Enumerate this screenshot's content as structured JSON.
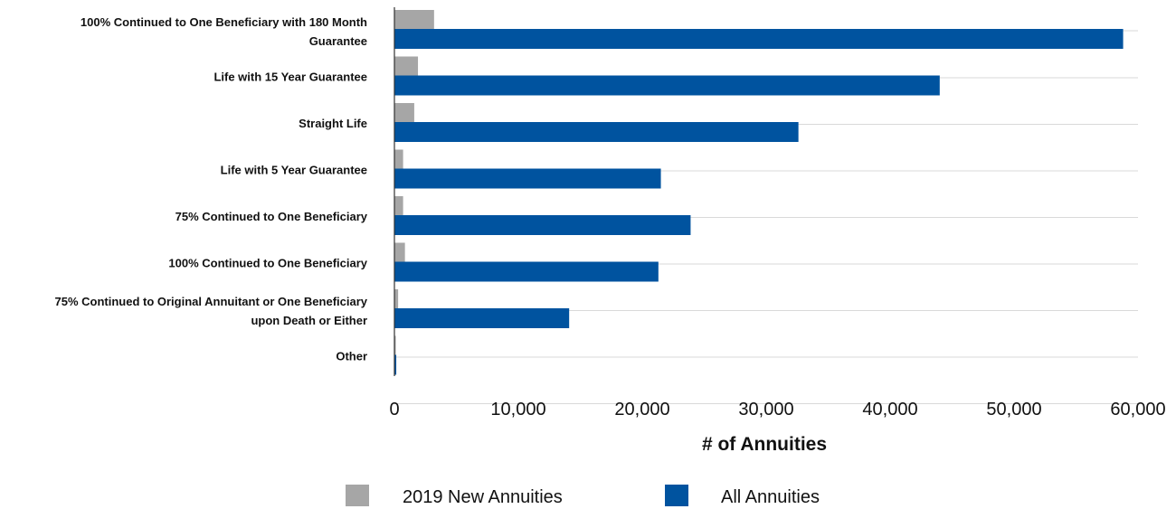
{
  "chart_data": {
    "type": "bar",
    "orientation": "horizontal",
    "categories": [
      [
        "100% Continued to One Beneficiary with 180 Month",
        "Guarantee"
      ],
      [
        "Life with 15 Year Guarantee"
      ],
      [
        "Straight Life"
      ],
      [
        "Life with 5 Year Guarantee"
      ],
      [
        "75% Continued to One Beneficiary"
      ],
      [
        "100% Continued to One Beneficiary"
      ],
      [
        "75% Continued to Original Annuitant or One Beneficiary",
        "upon Death or Either"
      ],
      [
        "Other"
      ]
    ],
    "series": [
      {
        "name": "2019 New Annuities",
        "color": "#a6a6a6",
        "values": [
          3200,
          1900,
          1600,
          700,
          700,
          850,
          300,
          20
        ]
      },
      {
        "name": "All Annuities",
        "color": "#00539f",
        "values": [
          58800,
          44000,
          32600,
          21500,
          23900,
          21300,
          14100,
          150
        ]
      }
    ],
    "xlabel": "# of Annuities",
    "xlim": [
      0,
      60000
    ],
    "xticks": [
      0,
      10000,
      20000,
      30000,
      40000,
      50000,
      60000
    ],
    "xtick_labels": [
      "0",
      "10,000",
      "20,000",
      "30,000",
      "40,000",
      "50,000",
      "60,000"
    ],
    "grid": "horizontal separators",
    "legend": "bottom-center",
    "gridline_color": "#d9d9d9"
  }
}
